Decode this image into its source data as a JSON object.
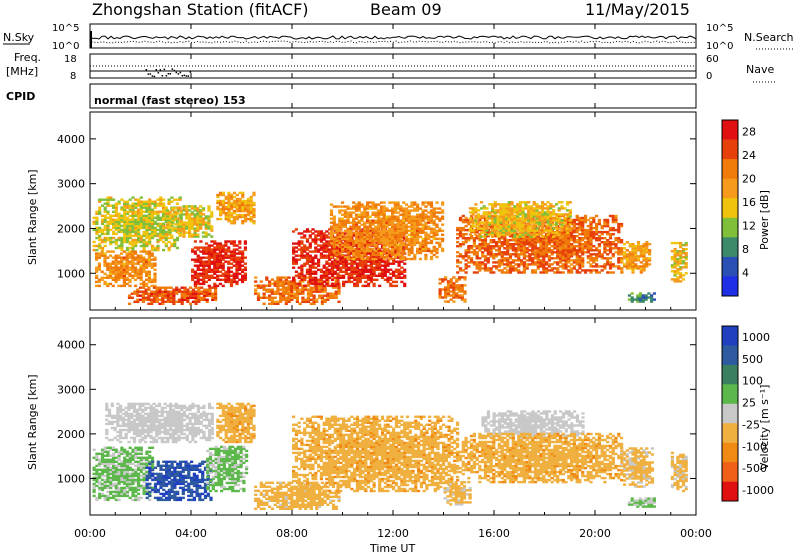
{
  "header": {
    "station": "Zhongshan Station (fitACF)",
    "beam": "Beam 09",
    "date": "11/May/2015"
  },
  "status": {
    "nsky_label": "N.Sky",
    "nsky_ticks": [
      "10^5",
      "10^0"
    ],
    "nsearch_label": "N.Search",
    "nsearch_ticks": [
      "10^5",
      "10^0"
    ],
    "freq_label": "Freq.",
    "freq_unit": "[MHz]",
    "freq_ticks": [
      "18",
      "8"
    ],
    "nave_label": "Nave",
    "nave_ticks": [
      "60",
      "0"
    ],
    "cpid_label": "CPID",
    "cpid_text": "normal (fast stereo) 153"
  },
  "x_axis": {
    "title": "Time UT",
    "range": [
      0,
      24
    ],
    "tick_labels": [
      "00:00",
      "04:00",
      "08:00",
      "12:00",
      "16:00",
      "20:00",
      "00:00"
    ]
  },
  "colors": {
    "power": [
      "#1f2fe6",
      "#2a4fb5",
      "#3d8a6a",
      "#7fbf3a",
      "#f0c40e",
      "#f59a1a",
      "#f07a0a",
      "#e8400a",
      "#e01010"
    ],
    "velocity": [
      "#2040c0",
      "#2e5aa0",
      "#3a8060",
      "#5cb84a",
      "#c8c8c8",
      "#f0b040",
      "#f08a14",
      "#f06018",
      "#e01010"
    ]
  },
  "chart_data": [
    {
      "type": "heatmap",
      "name": "power",
      "xlabel": "",
      "ylabel": "Slant Range [km]",
      "xlim": [
        0,
        24
      ],
      "ylim": [
        180,
        4600
      ],
      "yticks": [
        1000,
        2000,
        3000,
        4000
      ],
      "colorbar": {
        "label": "Power [dB]",
        "range": [
          0,
          30
        ],
        "tick_values": [
          4,
          8,
          12,
          16,
          20,
          24,
          28
        ],
        "tick_labels": [
          "4",
          "8",
          "12",
          "16",
          "20",
          "24",
          "28"
        ]
      },
      "echo_regions": [
        {
          "t0": 0.1,
          "t1": 3.6,
          "r0": 1500,
          "r1": 2700,
          "power": 14
        },
        {
          "t0": 0.2,
          "t1": 2.6,
          "r0": 700,
          "r1": 1500,
          "power": 20
        },
        {
          "t0": 1.5,
          "t1": 5.0,
          "r0": 300,
          "r1": 700,
          "power": 24
        },
        {
          "t0": 3.0,
          "t1": 4.8,
          "r0": 1800,
          "r1": 2500,
          "power": 15
        },
        {
          "t0": 4.0,
          "t1": 6.2,
          "r0": 700,
          "r1": 1700,
          "power": 27
        },
        {
          "t0": 5.0,
          "t1": 6.5,
          "r0": 2100,
          "r1": 2800,
          "power": 18
        },
        {
          "t0": 6.5,
          "t1": 9.8,
          "r0": 300,
          "r1": 900,
          "power": 22
        },
        {
          "t0": 8.0,
          "t1": 12.5,
          "r0": 700,
          "r1": 2000,
          "power": 27
        },
        {
          "t0": 9.5,
          "t1": 14.0,
          "r0": 1300,
          "r1": 2600,
          "power": 20
        },
        {
          "t0": 13.8,
          "t1": 14.8,
          "r0": 350,
          "r1": 900,
          "power": 22
        },
        {
          "t0": 14.5,
          "t1": 21.0,
          "r0": 1000,
          "r1": 2300,
          "power": 23
        },
        {
          "t0": 15.0,
          "t1": 19.0,
          "r0": 1800,
          "r1": 2600,
          "power": 16
        },
        {
          "t0": 21.0,
          "t1": 22.2,
          "r0": 1000,
          "r1": 1700,
          "power": 18
        },
        {
          "t0": 21.3,
          "t1": 22.3,
          "r0": 350,
          "r1": 550,
          "power": 9
        },
        {
          "t0": 23.0,
          "t1": 23.6,
          "r0": 800,
          "r1": 1700,
          "power": 16
        }
      ]
    },
    {
      "type": "heatmap",
      "name": "velocity",
      "xlabel": "Time UT",
      "ylabel": "Slant Range [km]",
      "xlim": [
        0,
        24
      ],
      "ylim": [
        180,
        4600
      ],
      "yticks": [
        1000,
        2000,
        3000,
        4000
      ],
      "colorbar": {
        "label": "Velocity [m s⁻¹]",
        "range": [
          -1200,
          1200
        ],
        "tick_values": [
          1000,
          500,
          100,
          25,
          -25,
          -100,
          -500,
          -1000
        ],
        "tick_labels": [
          "1000",
          "500",
          "100",
          "25",
          "-25",
          "-100",
          "-500",
          "-1000"
        ]
      },
      "echo_regions": [
        {
          "t0": 0.1,
          "t1": 2.5,
          "r0": 500,
          "r1": 1700,
          "velocity": 180
        },
        {
          "t0": 2.2,
          "t1": 4.8,
          "r0": 500,
          "r1": 1400,
          "velocity": 900
        },
        {
          "t0": 0.6,
          "t1": 4.8,
          "r0": 1800,
          "r1": 2700,
          "velocity": 0
        },
        {
          "t0": 4.6,
          "t1": 6.2,
          "r0": 700,
          "r1": 1700,
          "velocity": 200
        },
        {
          "t0": 5.0,
          "t1": 6.5,
          "r0": 1800,
          "r1": 2700,
          "velocity": -300
        },
        {
          "t0": 6.5,
          "t1": 9.8,
          "r0": 300,
          "r1": 900,
          "velocity": -250
        },
        {
          "t0": 8.0,
          "t1": 14.5,
          "r0": 700,
          "r1": 2400,
          "velocity": -300
        },
        {
          "t0": 14.0,
          "t1": 15.0,
          "r0": 400,
          "r1": 900,
          "velocity": -200
        },
        {
          "t0": 15.5,
          "t1": 19.5,
          "r0": 1900,
          "r1": 2500,
          "velocity": 0
        },
        {
          "t0": 14.5,
          "t1": 21.0,
          "r0": 900,
          "r1": 2000,
          "velocity": -300
        },
        {
          "t0": 21.0,
          "t1": 22.3,
          "r0": 800,
          "r1": 1700,
          "velocity": -200
        },
        {
          "t0": 21.3,
          "t1": 22.3,
          "r0": 350,
          "r1": 550,
          "velocity": 150
        },
        {
          "t0": 23.0,
          "t1": 23.6,
          "r0": 700,
          "r1": 1600,
          "velocity": -200
        }
      ]
    }
  ]
}
